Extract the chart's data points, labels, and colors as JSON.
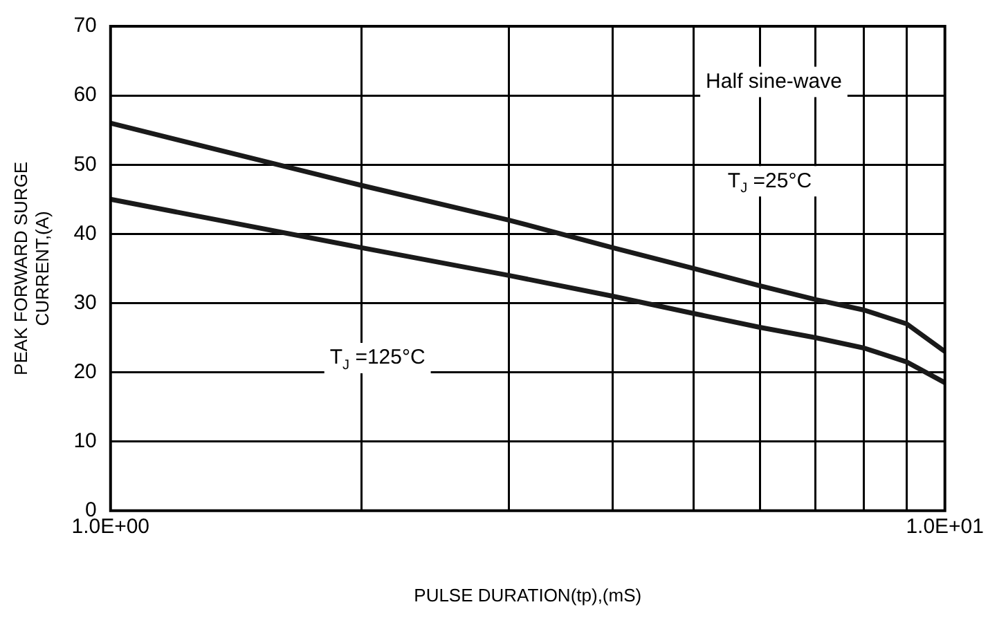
{
  "chart_data": {
    "type": "line",
    "xlabel": "PULSE DURATION(tp),(mS)",
    "ylabel": "PEAK FORWARD SURGE\nCURRENT,(A)",
    "x": [
      1,
      2,
      3,
      4,
      5,
      6,
      7,
      8,
      9,
      10
    ],
    "series": [
      {
        "color": "#1a1a1a",
        "values": [
          56,
          47,
          42,
          38,
          35,
          32.5,
          30.5,
          29,
          27,
          23
        ]
      },
      {
        "color": "#1a1a1a",
        "values": [
          45,
          38,
          34,
          31,
          28.5,
          26.5,
          25,
          23.5,
          21.5,
          18.5
        ]
      }
    ],
    "xlim": [
      1,
      10
    ],
    "xticks": [
      {
        "value": 1,
        "label": "1.0E+00"
      },
      {
        "value": 2,
        "label": null
      },
      {
        "value": 3,
        "label": null
      },
      {
        "value": 4,
        "label": null
      },
      {
        "value": 5,
        "label": null
      },
      {
        "value": 6,
        "label": null
      },
      {
        "value": 7,
        "label": null
      },
      {
        "value": 8,
        "label": null
      },
      {
        "value": 9,
        "label": null
      },
      {
        "value": 10,
        "label": "1.0E+01"
      }
    ],
    "ylim": [
      0,
      70
    ],
    "yticks": [
      0,
      10,
      20,
      30,
      40,
      50,
      60,
      70
    ],
    "log": "x",
    "grid": true,
    "legend": false,
    "marker": "none",
    "line_style": "solid",
    "annotations": [
      "Half sine-wave",
      "T$_{J}$ =25°C",
      "T$_{J}$ =125°C"
    ]
  }
}
